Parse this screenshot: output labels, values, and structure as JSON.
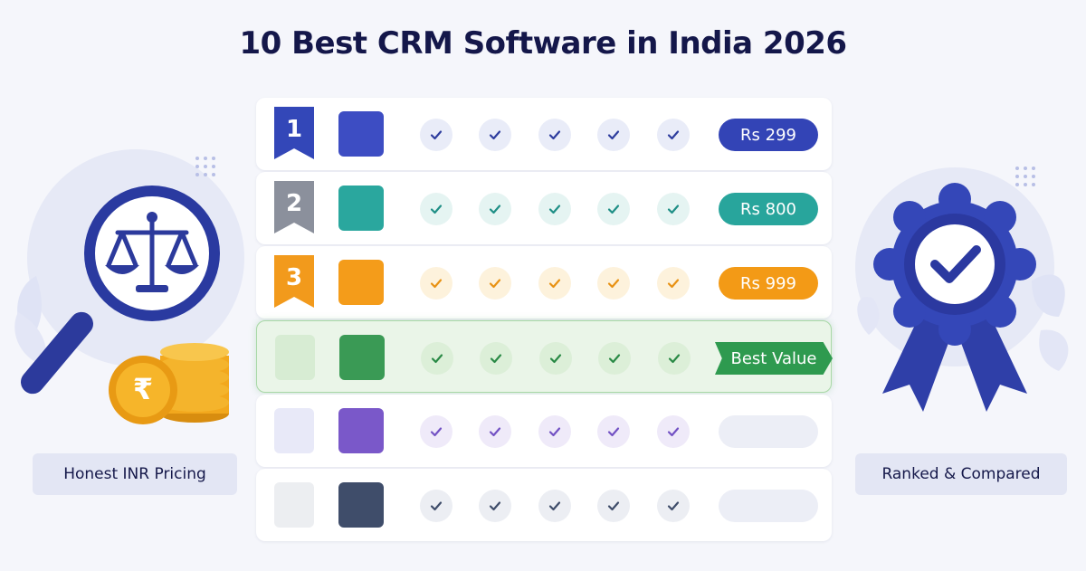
{
  "title": "10 Best CRM Software in India 2026",
  "left_label": "Honest INR Pricing",
  "right_label": "Ranked & Compared",
  "rows": [
    {
      "rank": "1",
      "badge_color": "#3347b8",
      "logo_color": "#3d4dc3",
      "check_bg": "#e9ecf8",
      "check_color": "#2e3d9e",
      "price": "Rs 299",
      "price_color": "#3344b6"
    },
    {
      "rank": "2",
      "badge_color": "#8b909c",
      "logo_color": "#2aa79e",
      "check_bg": "#e5f4f2",
      "check_color": "#1f8f86",
      "price": "Rs 800",
      "price_color": "#28a59c"
    },
    {
      "rank": "3",
      "badge_color": "#f29a1c",
      "logo_color": "#f49c1a",
      "check_bg": "#fdf2dc",
      "check_color": "#e89214",
      "price": "Rs 999",
      "price_color": "#f39a16"
    },
    {
      "rank": "",
      "badge_color": "#d7ecd3",
      "logo_color": "#3a9a55",
      "check_bg": "#dcefd8",
      "check_color": "#2a8a46",
      "price": "Best Value",
      "price_color": "#2e9a4f"
    },
    {
      "rank": "",
      "badge_color": "#e8e9f8",
      "logo_color": "#7a58c9",
      "check_bg": "#efeaf9",
      "check_color": "#7352c4",
      "price": "",
      "price_color": "#eceef6"
    },
    {
      "rank": "",
      "badge_color": "#eceef1",
      "logo_color": "#3f4d6a",
      "check_bg": "#eceef3",
      "check_color": "#3f4d6a",
      "price": "",
      "price_color": "#eceef6"
    }
  ],
  "coin_symbol": "₹"
}
